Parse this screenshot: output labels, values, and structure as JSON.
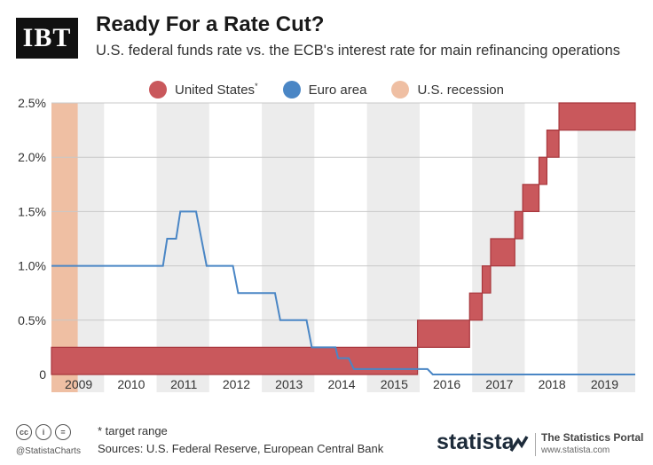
{
  "header": {
    "logo_text": "IBT",
    "title": "Ready For a Rate Cut?",
    "subtitle": "U.S. federal funds rate vs. the ECB's interest rate for main refinancing operations"
  },
  "legend": {
    "us": "United States",
    "us_suffix": "*",
    "euro": "Euro area",
    "recession": "U.S. recession"
  },
  "colors": {
    "us_fill": "#c9585c",
    "us_stroke": "#a8373d",
    "euro_line": "#4a86c5",
    "recession": "#efbfa3",
    "shade": "#ececec"
  },
  "chart_data": {
    "type": "area",
    "title": "Ready For a Rate Cut?",
    "xlim": [
      2008.5,
      2019.6
    ],
    "ylim": [
      0,
      2.5
    ],
    "y_ticks": [
      0,
      0.5,
      1.0,
      1.5,
      2.0,
      2.5
    ],
    "y_tick_labels": [
      "0",
      "0.5%",
      "1.0%",
      "1.5%",
      "2.0%",
      "2.5%"
    ],
    "x_ticks": [
      2009,
      2010,
      2011,
      2012,
      2013,
      2014,
      2015,
      2016,
      2017,
      2018,
      2019
    ],
    "x_tick_labels": [
      "2009",
      "2010",
      "2011",
      "2012",
      "2013",
      "2014",
      "2015",
      "2016",
      "2017",
      "2018",
      "2019"
    ],
    "shaded_year_bands": [
      [
        2009,
        2009.5
      ],
      [
        2010.5,
        2011.5
      ],
      [
        2012.5,
        2013.5
      ],
      [
        2014.5,
        2015.5
      ],
      [
        2016.5,
        2017.5
      ],
      [
        2018.5,
        2019.6
      ]
    ],
    "recession": [
      2008.5,
      2009.0
    ],
    "series": [
      {
        "name": "United States",
        "kind": "target range band",
        "points": [
          {
            "x": 2008.5,
            "low": 0,
            "high": 0.25
          },
          {
            "x": 2015.46,
            "low": 0,
            "high": 0.25
          },
          {
            "x": 2015.46,
            "low": 0.25,
            "high": 0.5
          },
          {
            "x": 2016.45,
            "low": 0.25,
            "high": 0.5
          },
          {
            "x": 2016.45,
            "low": 0.5,
            "high": 0.75
          },
          {
            "x": 2016.69,
            "low": 0.5,
            "high": 0.75
          },
          {
            "x": 2016.69,
            "low": 0.75,
            "high": 1.0
          },
          {
            "x": 2016.85,
            "low": 0.75,
            "high": 1.0
          },
          {
            "x": 2016.85,
            "low": 1.0,
            "high": 1.25
          },
          {
            "x": 2017.31,
            "low": 1.0,
            "high": 1.25
          },
          {
            "x": 2017.31,
            "low": 1.25,
            "high": 1.5
          },
          {
            "x": 2017.46,
            "low": 1.25,
            "high": 1.5
          },
          {
            "x": 2017.46,
            "low": 1.5,
            "high": 1.75
          },
          {
            "x": 2017.77,
            "low": 1.5,
            "high": 1.75
          },
          {
            "x": 2017.77,
            "low": 1.75,
            "high": 2.0
          },
          {
            "x": 2017.92,
            "low": 1.75,
            "high": 2.0
          },
          {
            "x": 2017.92,
            "low": 2.0,
            "high": 2.25
          },
          {
            "x": 2018.15,
            "low": 2.0,
            "high": 2.25
          },
          {
            "x": 2018.15,
            "low": 2.25,
            "high": 2.5
          },
          {
            "x": 2019.6,
            "low": 2.25,
            "high": 2.5
          }
        ]
      },
      {
        "name": "Euro area",
        "kind": "line",
        "points": [
          [
            2008.5,
            1.0
          ],
          [
            2010.62,
            1.0
          ],
          [
            2010.7,
            1.25
          ],
          [
            2010.87,
            1.25
          ],
          [
            2010.95,
            1.5
          ],
          [
            2011.25,
            1.5
          ],
          [
            2011.45,
            1.0
          ],
          [
            2011.95,
            1.0
          ],
          [
            2012.05,
            0.75
          ],
          [
            2012.75,
            0.75
          ],
          [
            2012.85,
            0.5
          ],
          [
            2013.35,
            0.5
          ],
          [
            2013.45,
            0.25
          ],
          [
            2013.9,
            0.25
          ],
          [
            2013.95,
            0.15
          ],
          [
            2014.15,
            0.15
          ],
          [
            2014.25,
            0.05
          ],
          [
            2015.65,
            0.05
          ],
          [
            2015.75,
            0.0
          ],
          [
            2019.6,
            0.0
          ]
        ]
      }
    ]
  },
  "footer": {
    "note": "* target range",
    "sources": "Sources: U.S. Federal Reserve, European Central Bank",
    "handle": "@StatistaCharts",
    "brand": "statista",
    "portal": "The Statistics Portal",
    "url": "www.statista.com"
  }
}
